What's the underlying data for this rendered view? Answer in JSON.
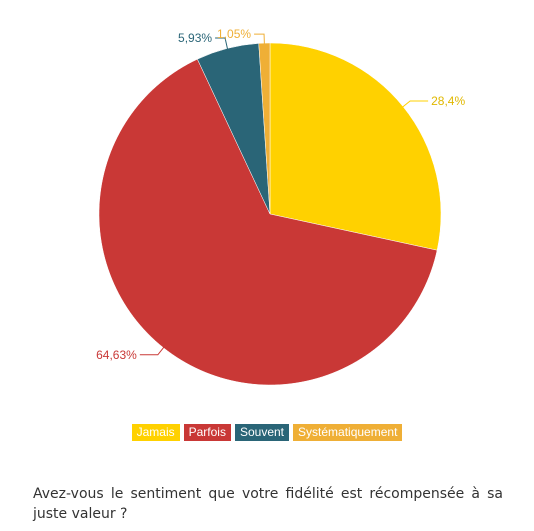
{
  "chart_data": {
    "type": "pie",
    "categories": [
      "Jamais",
      "Parfois",
      "Souvent",
      "Systématiquement"
    ],
    "values": [
      28.4,
      64.63,
      5.93,
      1.05
    ],
    "labels": [
      "28,4%",
      "64,63%",
      "5,93%",
      "1,05%"
    ],
    "colors": [
      "#FFD100",
      "#C93836",
      "#2A6577",
      "#EFAF36"
    ],
    "start_angle_deg": 0,
    "direction": "clockwise",
    "legend_position": "bottom"
  },
  "question": "Avez-vous le sentiment que votre fidélité est récompensée à sa juste valeur ?"
}
